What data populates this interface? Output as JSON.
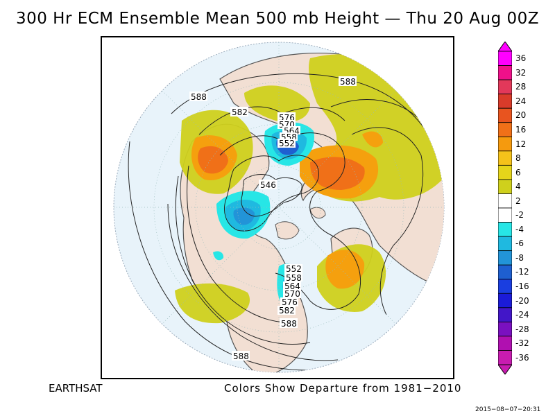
{
  "title": "300 Hr ECM Ensemble Mean 500 mb Height — Thu 20 Aug 00Z",
  "footer": {
    "source": "EARTHSAT",
    "note": "Colors Show Departure from 1981−2010"
  },
  "timestamp": "2015−08−07−20:31",
  "colorbar": {
    "labels": [
      "36",
      "32",
      "28",
      "24",
      "20",
      "16",
      "12",
      "8",
      "6",
      "4",
      "2",
      "-2",
      "-4",
      "-6",
      "-8",
      "-12",
      "-16",
      "-20",
      "-24",
      "-28",
      "-32",
      "-36"
    ],
    "colors": [
      "#ff00ff",
      "#f0108a",
      "#e2385a",
      "#d93b2a",
      "#e8541f",
      "#f07018",
      "#f59a0e",
      "#f5c21a",
      "#e5d51a",
      "#cfd01c",
      "#ffffff",
      "#ffffff",
      "#27e6e6",
      "#1fb9e0",
      "#2294d8",
      "#1e5fd0",
      "#1a3ee0",
      "#1b1bd8",
      "#4216c8",
      "#7a10c0",
      "#b010b0",
      "#c81cb0"
    ]
  },
  "contour_labels": {
    "l588_pacific": "588",
    "l582_alaska": "582",
    "l576_arctic": "576",
    "l570_arctic": "570",
    "l564_arctic": "564",
    "l558_arctic": "558",
    "l552_arctic": "552",
    "l546_center": "546",
    "l588_eurasia": "588",
    "l552_namer": "552",
    "l558_namer": "558",
    "l564_namer": "564",
    "l570_namer": "570",
    "l576_namer": "576",
    "l582_namer": "582",
    "l588_namer": "588",
    "l588_bottom": "588"
  },
  "anomalies": [
    {
      "label": "pos-canada-west",
      "value": 12
    },
    {
      "label": "neg-arctic",
      "value": -12
    },
    {
      "label": "pos-scandinavia",
      "value": 12
    },
    {
      "label": "neg-hudson",
      "value": -12
    },
    {
      "label": "pos-atlantic",
      "value": 8
    },
    {
      "label": "neg-great-lakes",
      "value": -4
    }
  ]
}
